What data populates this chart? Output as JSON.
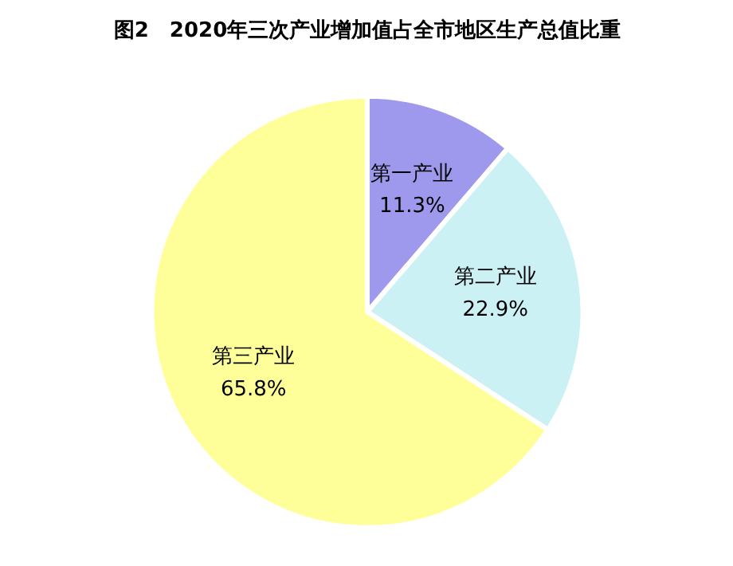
{
  "chart_data": {
    "type": "pie",
    "title": "图2　2020年三次产业增加值占全市地区生产总值比重",
    "categories": [
      "第一产业",
      "第二产业",
      "第三产业"
    ],
    "values": [
      11.3,
      22.9,
      65.8
    ],
    "colors": [
      "#9f99ee",
      "#cbf1f5",
      "#ffff99"
    ],
    "value_labels": [
      "11.3%",
      "22.9%",
      "65.8%"
    ],
    "legend": false
  }
}
